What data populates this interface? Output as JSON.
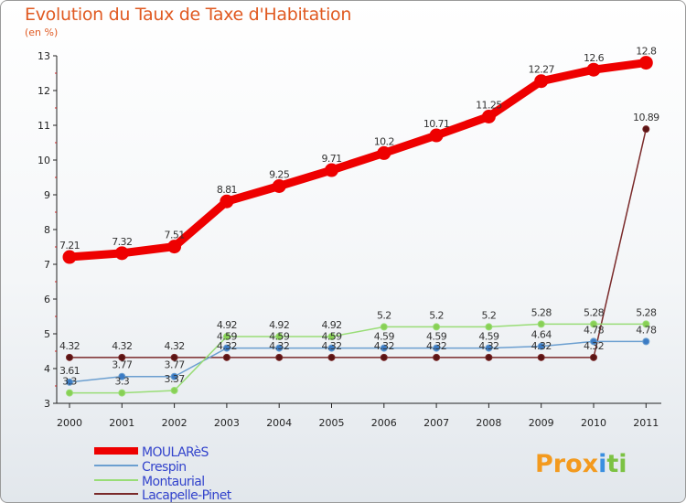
{
  "chart_data": {
    "type": "line",
    "title": "Evolution du Taux de Taxe d'Habitation",
    "subtitle": "(en %)",
    "x": [
      "2000",
      "2001",
      "2002",
      "2003",
      "2004",
      "2005",
      "2006",
      "2007",
      "2008",
      "2009",
      "2010",
      "2011"
    ],
    "ylim": [
      3,
      13
    ],
    "yticks": [
      "3",
      "4",
      "5",
      "6",
      "7",
      "8",
      "9",
      "10",
      "11",
      "12",
      "13"
    ],
    "grid": false,
    "legend_position": "bottom-left",
    "series": [
      {
        "name": "MOULARèS",
        "color": "#ee0000",
        "values": [
          7.21,
          7.32,
          7.51,
          8.81,
          9.25,
          9.71,
          10.2,
          10.71,
          11.25,
          12.27,
          12.6,
          12.8
        ],
        "labels": [
          "7.21",
          "7.32",
          "7.51",
          "8.81",
          "9.25",
          "9.71",
          "10.2",
          "10.71",
          "11.25",
          "12.27",
          "12.6",
          "12.8"
        ]
      },
      {
        "name": "Crespin",
        "color": "#6b9fd0",
        "values": [
          3.61,
          3.77,
          3.77,
          4.59,
          4.59,
          4.59,
          4.59,
          4.59,
          4.59,
          4.64,
          4.78,
          4.78
        ],
        "labels": [
          "3.61",
          "3.77",
          "3.77",
          "4.59",
          "4.59",
          "4.59",
          "4.59",
          "4.59",
          "4.59",
          "4.64",
          "4.78",
          "4.78"
        ]
      },
      {
        "name": "Montaurial",
        "color": "#99dd77",
        "values": [
          3.3,
          3.3,
          3.37,
          4.92,
          4.92,
          4.92,
          5.2,
          5.2,
          5.2,
          5.28,
          5.28,
          5.28
        ],
        "labels": [
          "3.3",
          "3.3",
          "3.37",
          "4.92",
          "4.92",
          "4.92",
          "5.2",
          "5.2",
          "5.2",
          "5.28",
          "5.28",
          "5.28"
        ]
      },
      {
        "name": "Lacapelle-Pinet",
        "color": "#7a2a2a",
        "values": [
          4.32,
          4.32,
          4.32,
          4.32,
          4.32,
          4.32,
          4.32,
          4.32,
          4.32,
          4.32,
          4.32,
          10.89
        ],
        "labels": [
          "4.32",
          "4.32",
          "4.32",
          "4.32",
          "4.32",
          "4.32",
          "4.32",
          "4.32",
          "4.32",
          "4.32",
          "4.32",
          "10.89"
        ]
      }
    ]
  },
  "logo": {
    "text": "Prox",
    "mark": "i",
    "rest": "ti"
  }
}
